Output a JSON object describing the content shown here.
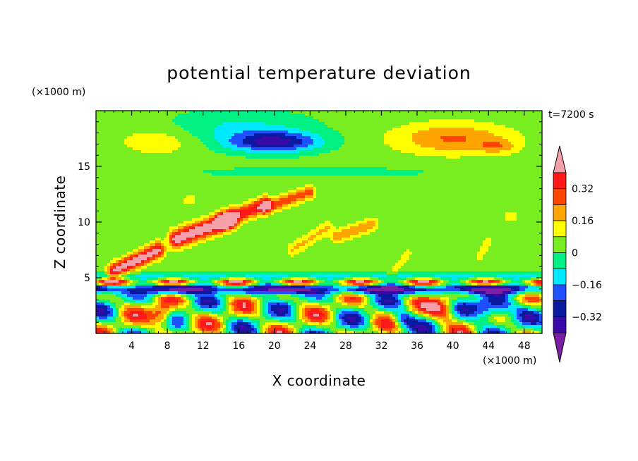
{
  "chart_data": {
    "type": "heatmap",
    "title": "potential temperature deviation",
    "xlabel": "X coordinate",
    "ylabel": "Z coordinate",
    "x_unit": "(×1000 m)",
    "y_unit": "(×1000 m)",
    "time_label": "t=7200 s",
    "xlim": [
      0,
      50
    ],
    "ylim": [
      0,
      20
    ],
    "x_ticks": [
      "4",
      "8",
      "12",
      "16",
      "20",
      "24",
      "28",
      "32",
      "36",
      "40",
      "44",
      "48"
    ],
    "y_ticks": [
      "5",
      "10",
      "15"
    ],
    "colorbar": {
      "levels": [
        -0.48,
        -0.4,
        -0.32,
        -0.24,
        -0.16,
        -0.08,
        0,
        0.08,
        0.16,
        0.24,
        0.32,
        0.4
      ],
      "colors": [
        "#7b1fa2",
        "#3a0aa8",
        "#0a1aa0",
        "#1e50ff",
        "#00e8ff",
        "#00f084",
        "#78ee20",
        "#ffff00",
        "#ffa500",
        "#ff4500",
        "#ff1a1a",
        "#f5a0a8"
      ],
      "labels": [
        "−0.32",
        "−0.16",
        "0",
        "0.16",
        "0.32"
      ],
      "extend": "both"
    },
    "features": [
      {
        "kind": "warm",
        "x": [
          3,
          12
        ],
        "z": [
          15.5,
          18.5
        ],
        "peak": 0.12
      },
      {
        "kind": "cold",
        "x": [
          12,
          28
        ],
        "z": [
          15.5,
          18.5
        ],
        "peak": -0.36
      },
      {
        "kind": "warm",
        "x": [
          32,
          48
        ],
        "z": [
          15.5,
          19
        ],
        "peak": 0.22
      },
      {
        "kind": "warm-streaks",
        "x": [
          1,
          30
        ],
        "z": [
          5,
          12
        ],
        "peak": 0.42
      },
      {
        "kind": "cold-layer",
        "x": [
          0,
          50
        ],
        "z": [
          3.5,
          4.5
        ],
        "peak": -0.48
      },
      {
        "kind": "mixed-convection",
        "x": [
          0,
          50
        ],
        "z": [
          0,
          3.5
        ],
        "peak": 0.4
      }
    ]
  }
}
